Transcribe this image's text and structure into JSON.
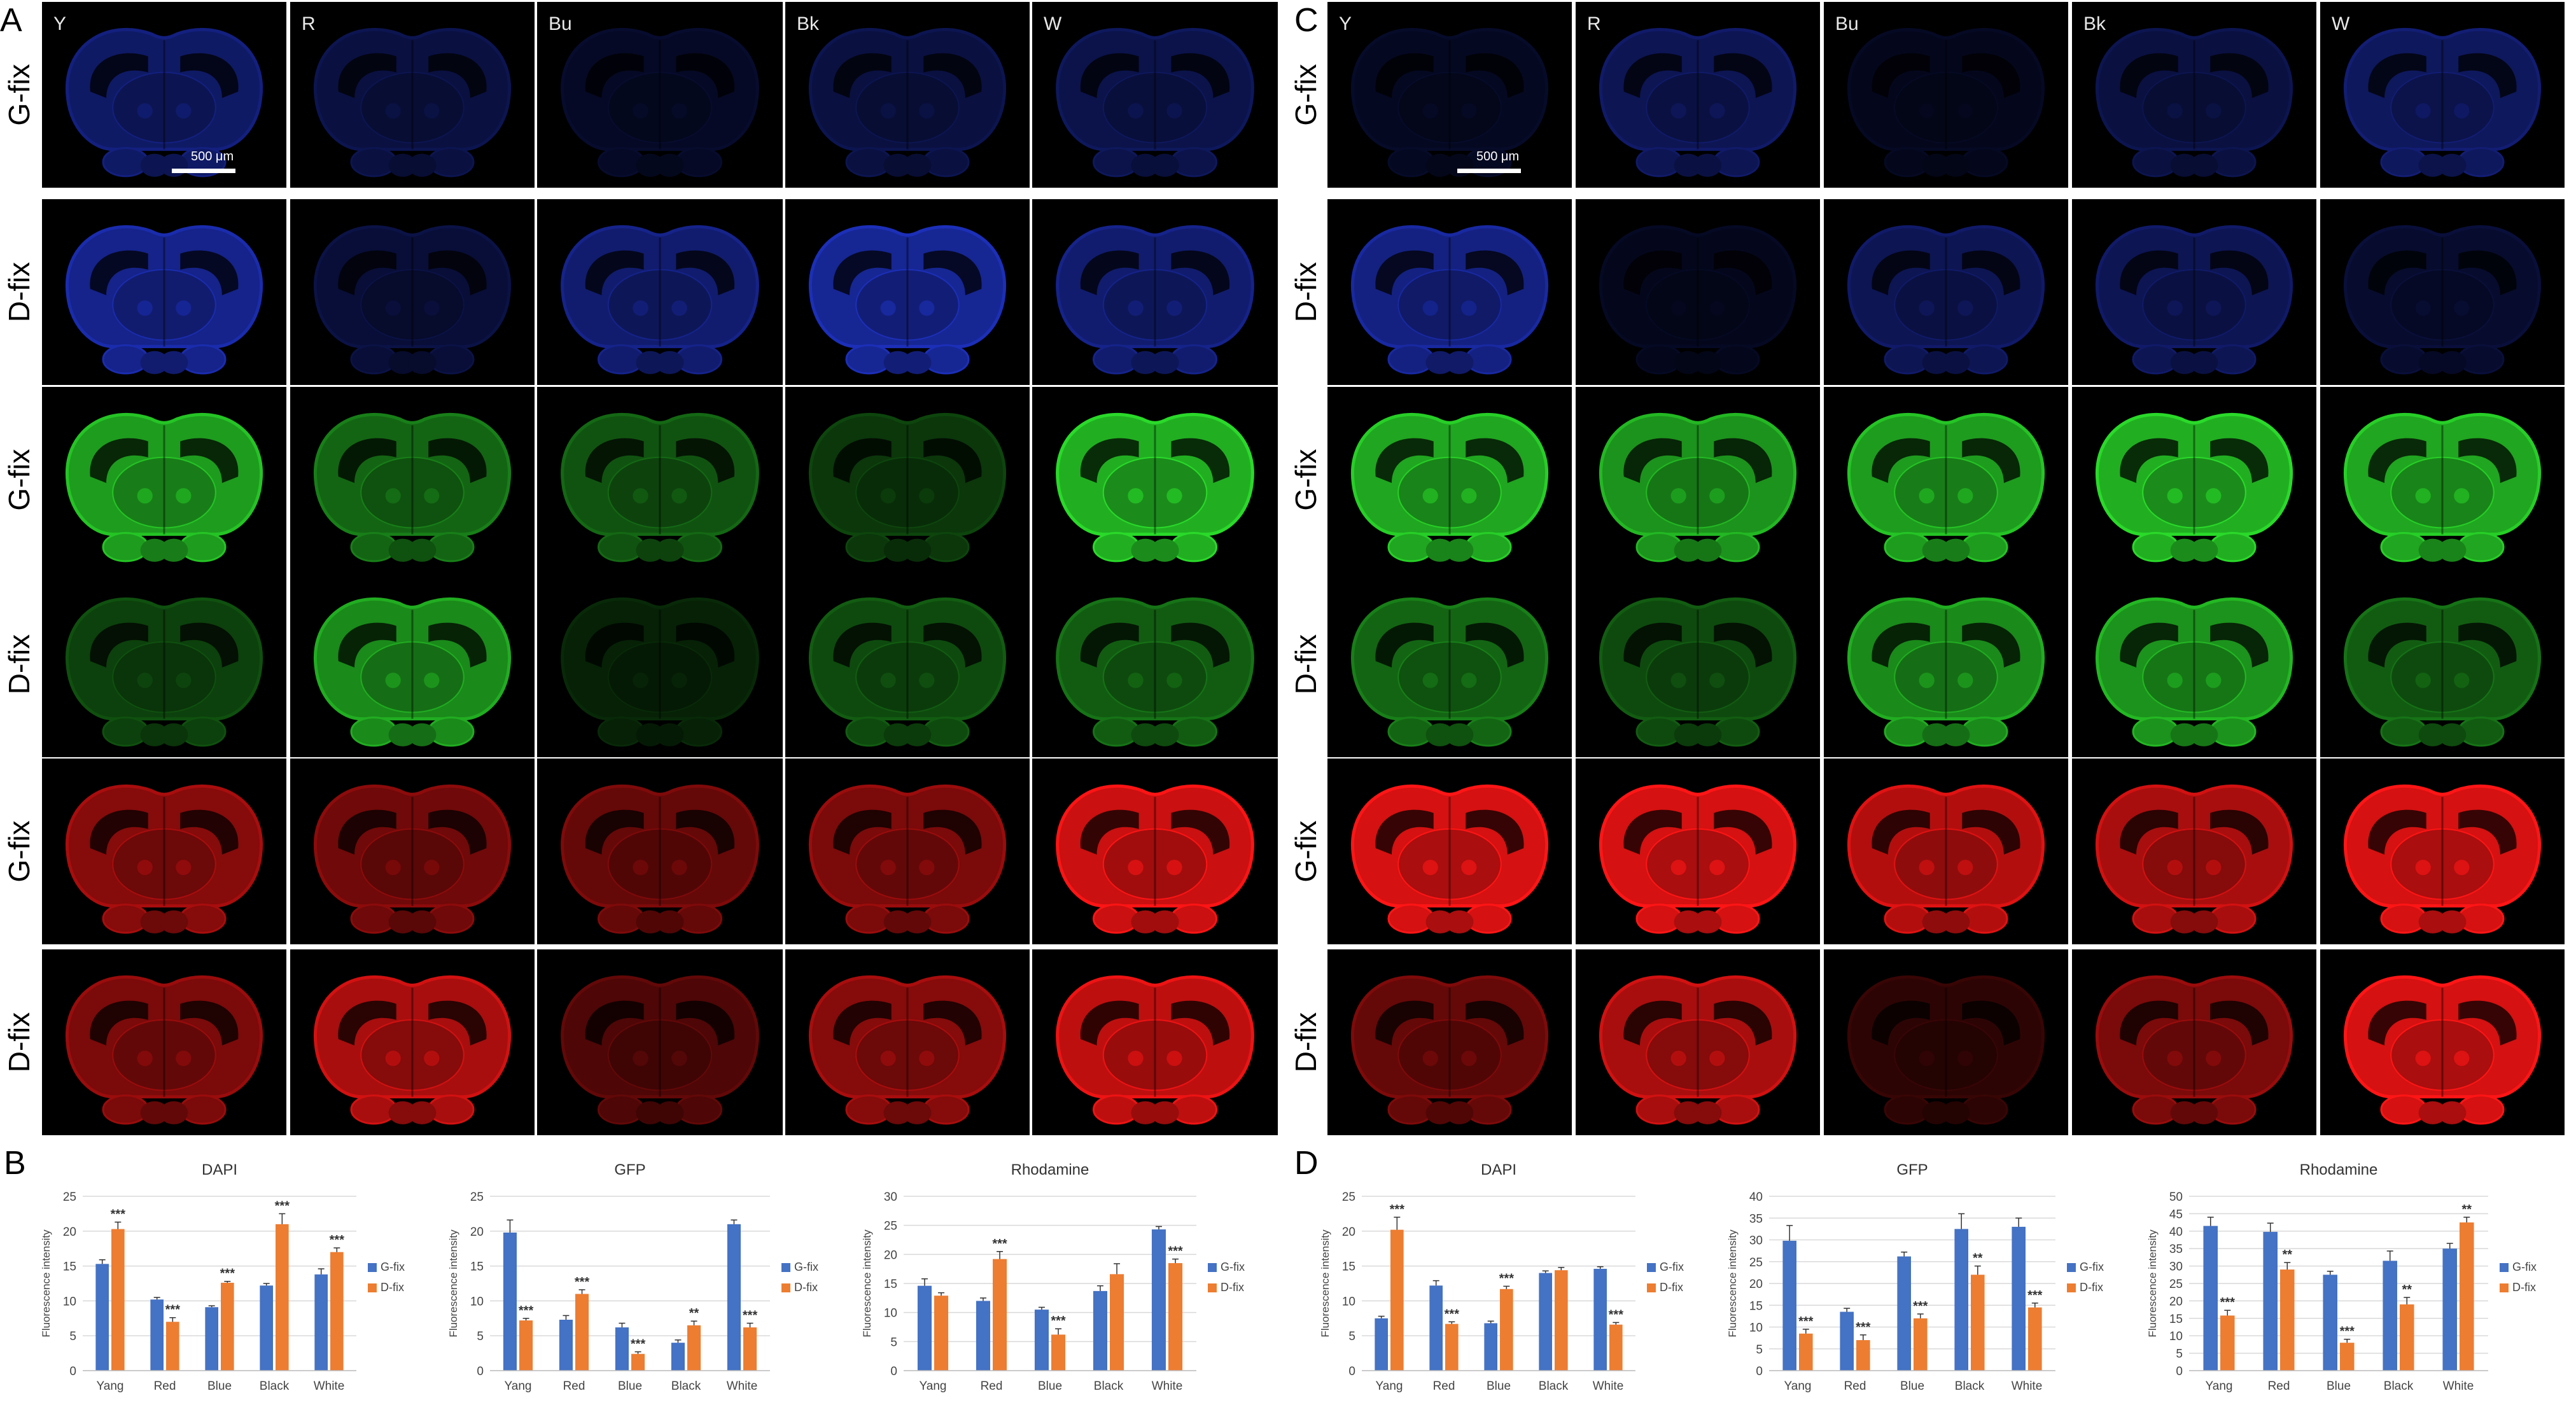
{
  "panels": {
    "A": {
      "letter": "A",
      "columns": [
        "Y",
        "R",
        "Bu",
        "Bk",
        "W"
      ],
      "rows": [
        "G-fix",
        "D-fix",
        "G-fix",
        "D-fix",
        "G-fix",
        "D-fix"
      ],
      "scale_bar": "500 μm"
    },
    "C": {
      "letter": "C",
      "columns": [
        "Y",
        "R",
        "Bu",
        "Bk",
        "W"
      ],
      "rows": [
        "G-fix",
        "D-fix",
        "G-fix",
        "D-fix",
        "G-fix",
        "D-fix"
      ],
      "scale_bar": "500 μm"
    },
    "B": {
      "letter": "B"
    },
    "D": {
      "letter": "D"
    }
  },
  "channel_colors": {
    "dapi": "#1c2fb8",
    "gfp": "#23b823",
    "rhodamine": "#e01212"
  },
  "tile_intensity": {
    "A": [
      [
        0.55,
        0.35,
        0.2,
        0.35,
        0.4
      ],
      [
        0.75,
        0.3,
        0.6,
        0.8,
        0.6
      ],
      [
        0.85,
        0.55,
        0.45,
        0.3,
        0.95
      ],
      [
        0.35,
        0.75,
        0.18,
        0.4,
        0.5
      ],
      [
        0.6,
        0.5,
        0.45,
        0.55,
        0.9
      ],
      [
        0.55,
        0.75,
        0.35,
        0.6,
        0.85
      ]
    ],
    "C": [
      [
        0.18,
        0.45,
        0.15,
        0.35,
        0.5
      ],
      [
        0.7,
        0.15,
        0.45,
        0.45,
        0.25
      ],
      [
        0.9,
        0.8,
        0.85,
        0.95,
        0.9
      ],
      [
        0.55,
        0.4,
        0.75,
        0.8,
        0.5
      ],
      [
        0.95,
        0.95,
        0.8,
        0.75,
        0.95
      ],
      [
        0.45,
        0.75,
        0.2,
        0.55,
        0.95
      ]
    ]
  },
  "chart_data": [
    {
      "type": "bar",
      "panel": "B",
      "title": "DAPI",
      "categories": [
        "Yang",
        "Red",
        "Blue",
        "Black",
        "White"
      ],
      "ylabel": "Fluorescence intensity",
      "ylim": [
        0,
        25
      ],
      "yticks": [
        "0",
        "5",
        "10",
        "15",
        "20",
        "25"
      ],
      "series": [
        {
          "name": "G-fix",
          "color": "#4472c4",
          "values": [
            15.3,
            10.2,
            9.1,
            12.2,
            13.8
          ],
          "errors": [
            0.6,
            0.3,
            0.2,
            0.3,
            0.8
          ]
        },
        {
          "name": "D-fix",
          "color": "#ed7d31",
          "values": [
            20.3,
            7.0,
            12.6,
            21.0,
            17.0
          ],
          "errors": [
            1.0,
            0.6,
            0.2,
            1.5,
            0.6
          ]
        }
      ],
      "significance": [
        "***",
        "***",
        "***",
        "***",
        "***"
      ],
      "legend": "right"
    },
    {
      "type": "bar",
      "panel": "B",
      "title": "GFP",
      "categories": [
        "Yang",
        "Red",
        "Blue",
        "Black",
        "White"
      ],
      "ylabel": "Fluorescence intensity",
      "ylim": [
        0,
        25
      ],
      "yticks": [
        "0",
        "5",
        "10",
        "15",
        "20",
        "25"
      ],
      "series": [
        {
          "name": "G-fix",
          "color": "#4472c4",
          "values": [
            19.8,
            7.3,
            6.2,
            4.0,
            21.0
          ],
          "errors": [
            1.8,
            0.6,
            0.6,
            0.4,
            0.6
          ]
        },
        {
          "name": "D-fix",
          "color": "#ed7d31",
          "values": [
            7.2,
            11.0,
            2.4,
            6.5,
            6.2
          ],
          "errors": [
            0.3,
            0.6,
            0.3,
            0.6,
            0.6
          ]
        }
      ],
      "significance": [
        "***",
        "***",
        "***",
        "**",
        "***"
      ],
      "legend": "right"
    },
    {
      "type": "bar",
      "panel": "B",
      "title": "Rhodamine",
      "categories": [
        "Yang",
        "Red",
        "Blue",
        "Black",
        "White"
      ],
      "ylabel": "Fluorescence intensity",
      "ylim": [
        0,
        30
      ],
      "yticks": [
        "0",
        "5",
        "10",
        "15",
        "20",
        "25",
        "30"
      ],
      "series": [
        {
          "name": "G-fix",
          "color": "#4472c4",
          "values": [
            14.6,
            12.0,
            10.5,
            13.7,
            24.3
          ],
          "errors": [
            1.2,
            0.5,
            0.4,
            0.9,
            0.5
          ]
        },
        {
          "name": "D-fix",
          "color": "#ed7d31",
          "values": [
            12.9,
            19.2,
            6.2,
            16.6,
            18.5
          ],
          "errors": [
            0.5,
            1.3,
            1.0,
            1.8,
            0.7
          ]
        }
      ],
      "significance": [
        "",
        "***",
        "***",
        "",
        "***"
      ],
      "legend": "right"
    },
    {
      "type": "bar",
      "panel": "D",
      "title": "DAPI",
      "categories": [
        "Yang",
        "Red",
        "Blue",
        "Black",
        "White"
      ],
      "ylabel": "Fluorescence intensity",
      "ylim": [
        0,
        25
      ],
      "yticks": [
        "0",
        "5",
        "10",
        "15",
        "20",
        "25"
      ],
      "series": [
        {
          "name": "G-fix",
          "color": "#4472c4",
          "values": [
            7.5,
            12.2,
            6.8,
            14.0,
            14.6
          ],
          "errors": [
            0.3,
            0.7,
            0.3,
            0.3,
            0.3
          ]
        },
        {
          "name": "D-fix",
          "color": "#ed7d31",
          "values": [
            20.2,
            6.7,
            11.7,
            14.4,
            6.6
          ],
          "errors": [
            1.8,
            0.3,
            0.4,
            0.4,
            0.3
          ]
        }
      ],
      "significance": [
        "***",
        "***",
        "***",
        "",
        "***"
      ],
      "legend": "right"
    },
    {
      "type": "bar",
      "panel": "D",
      "title": "GFP",
      "categories": [
        "Yang",
        "Red",
        "Blue",
        "Black",
        "White"
      ],
      "ylabel": "Fluorescence intensity",
      "ylim": [
        0,
        40
      ],
      "yticks": [
        "0",
        "5",
        "10",
        "15",
        "20",
        "25",
        "30",
        "35",
        "40"
      ],
      "series": [
        {
          "name": "G-fix",
          "color": "#4472c4",
          "values": [
            29.8,
            13.5,
            26.2,
            32.5,
            33.0
          ],
          "errors": [
            3.5,
            0.8,
            1.0,
            3.5,
            2.0
          ]
        },
        {
          "name": "D-fix",
          "color": "#ed7d31",
          "values": [
            8.5,
            7.0,
            12.0,
            22.0,
            14.5
          ],
          "errors": [
            1.0,
            1.2,
            1.0,
            2.0,
            1.0
          ]
        }
      ],
      "significance": [
        "***",
        "***",
        "***",
        "**",
        "***"
      ],
      "legend": "right"
    },
    {
      "type": "bar",
      "panel": "D",
      "title": "Rhodamine",
      "categories": [
        "Yang",
        "Red",
        "Blue",
        "Black",
        "White"
      ],
      "ylabel": "Fluorescence intensity",
      "ylim": [
        0,
        50
      ],
      "yticks": [
        "0",
        "5",
        "10",
        "15",
        "20",
        "25",
        "30",
        "35",
        "40",
        "45",
        "50"
      ],
      "series": [
        {
          "name": "G-fix",
          "color": "#4472c4",
          "values": [
            41.5,
            39.8,
            27.5,
            31.5,
            35.0
          ],
          "errors": [
            2.5,
            2.5,
            1.0,
            2.8,
            1.5
          ]
        },
        {
          "name": "D-fix",
          "color": "#ed7d31",
          "values": [
            15.8,
            29.0,
            8.0,
            19.0,
            42.5
          ],
          "errors": [
            1.5,
            2.0,
            1.0,
            2.0,
            1.5
          ]
        }
      ],
      "significance": [
        "***",
        "**",
        "***",
        "**",
        "**"
      ],
      "legend": "right"
    }
  ]
}
